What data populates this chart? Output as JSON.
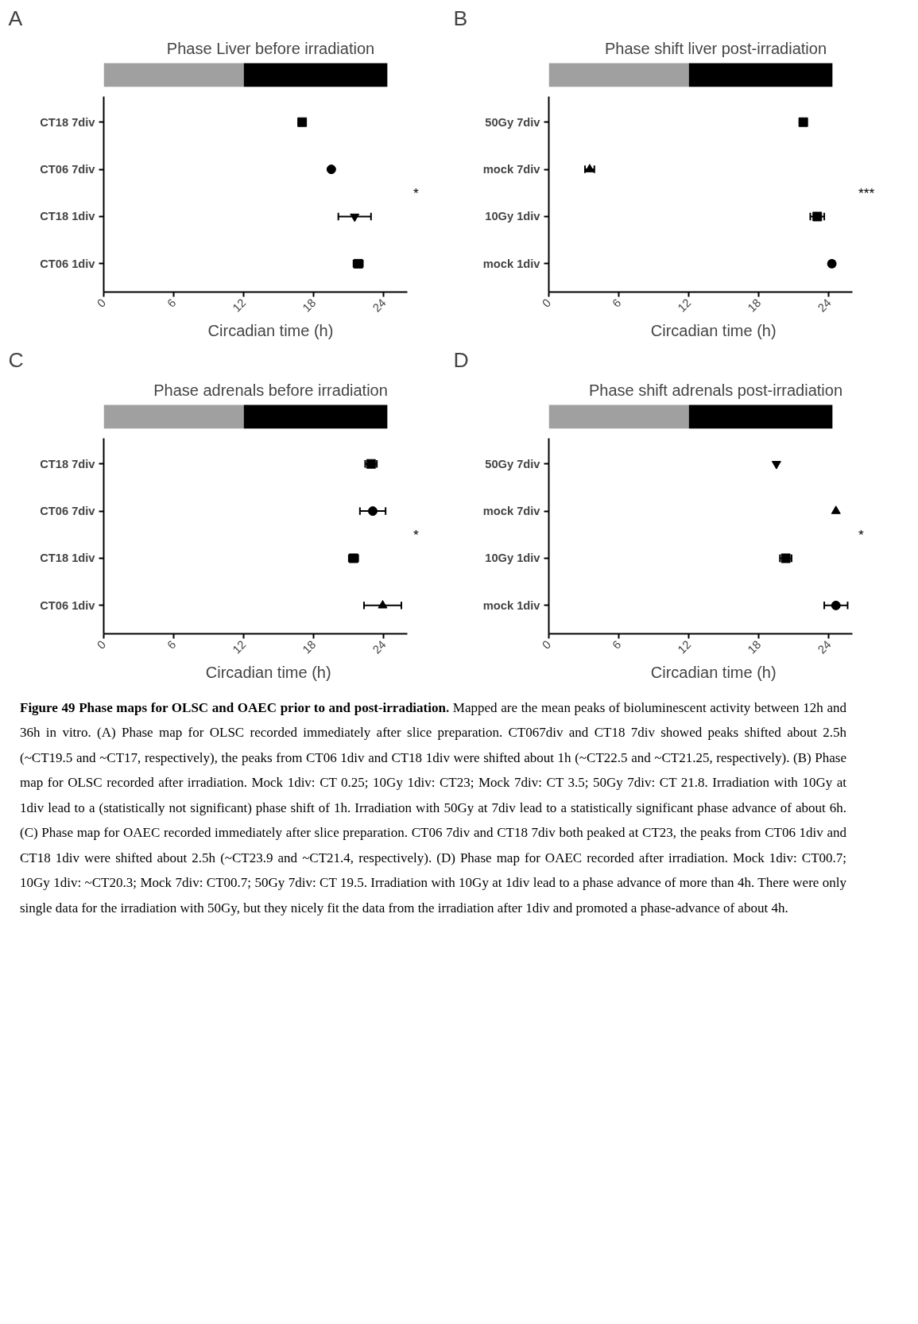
{
  "chart_data": [
    {
      "type": "scatter",
      "orientation": "horizontal",
      "stacked": true,
      "title": "Phase Liver before irradiation",
      "xlabel": "Circadian time (h)",
      "categories": [
        null,
        "CT18 7div",
        "CT06 7div",
        "CT18 1div",
        "CT06 1div"
      ],
      "xlim": [
        0,
        26
      ],
      "xticks": [
        0,
        6,
        12,
        18,
        24
      ],
      "grid": false,
      "annotations": [
        "A",
        "*"
      ],
      "series": [
        {
          "type": "bar",
          "color": "#a0a0a0",
          "values": [
            12,
            null,
            null,
            null,
            null
          ]
        },
        {
          "type": "bar",
          "color": "#000000",
          "values": [
            12.3,
            null,
            null,
            null,
            null
          ]
        },
        {
          "color": "#000000",
          "marker": "square",
          "values": [
            null,
            17.0,
            null,
            null,
            null
          ],
          "errors": [
            null,
            0.2,
            null,
            null,
            null
          ]
        },
        {
          "color": "#000000",
          "marker": "circle",
          "values": [
            null,
            null,
            19.5,
            null,
            null
          ]
        },
        {
          "color": "#000000",
          "marker": "triangle_down",
          "values": [
            null,
            null,
            null,
            21.5,
            null
          ],
          "errors": [
            null,
            null,
            null,
            1.4,
            null
          ]
        },
        {
          "color": "#000000",
          "marker": "square",
          "values": [
            null,
            null,
            null,
            null,
            21.8
          ],
          "errors": [
            null,
            null,
            null,
            null,
            0.4
          ]
        }
      ]
    },
    {
      "type": "scatter",
      "orientation": "horizontal",
      "stacked": true,
      "title": "Phase shift liver post-irradiation",
      "xlabel": "Circadian time  (h)",
      "categories": [
        null,
        "50Gy 7div",
        "mock 7div",
        "10Gy 1div",
        "mock 1div"
      ],
      "xlim": [
        0,
        26
      ],
      "xticks": [
        0,
        6,
        12,
        18,
        24
      ],
      "grid": false,
      "annotations": [
        "B",
        "***"
      ],
      "series": [
        {
          "type": "bar",
          "color": "#a0a0a0",
          "values": [
            12,
            null,
            null,
            null,
            null
          ]
        },
        {
          "type": "bar",
          "color": "#000000",
          "values": [
            12.3,
            null,
            null,
            null,
            null
          ]
        },
        {
          "color": "#000000",
          "marker": "square",
          "values": [
            null,
            21.8,
            null,
            null,
            null
          ],
          "errors": [
            null,
            0.3,
            null,
            null,
            null
          ]
        },
        {
          "color": "#000000",
          "marker": "triangle",
          "values": [
            null,
            null,
            3.5,
            null,
            null
          ],
          "errors": [
            null,
            null,
            0.4,
            null,
            null
          ]
        },
        {
          "color": "#000000",
          "marker": "square",
          "values": [
            null,
            null,
            null,
            23.0,
            null
          ],
          "errors": [
            null,
            null,
            null,
            0.6,
            null
          ]
        },
        {
          "color": "#000000",
          "marker": "circle",
          "values": [
            null,
            null,
            null,
            null,
            24.25
          ],
          "errors": [
            null,
            null,
            null,
            null,
            0.2
          ]
        }
      ]
    },
    {
      "type": "scatter",
      "orientation": "horizontal",
      "stacked": true,
      "title": "Phase adrenals before irradiation",
      "xlabel": "Circadian time  (h)",
      "categories": [
        null,
        "CT18 7div",
        "CT06 7div",
        "CT18 1div",
        "CT06 1div"
      ],
      "xlim": [
        0,
        26
      ],
      "xticks": [
        0,
        6,
        12,
        18,
        24
      ],
      "grid": false,
      "annotations": [
        "C",
        "*"
      ],
      "series": [
        {
          "type": "bar",
          "color": "#a0a0a0",
          "values": [
            12,
            null,
            null,
            null,
            null
          ]
        },
        {
          "type": "bar",
          "color": "#000000",
          "values": [
            12.3,
            null,
            null,
            null,
            null
          ]
        },
        {
          "color": "#000000",
          "marker": "square",
          "values": [
            null,
            22.9,
            null,
            null,
            null
          ],
          "errors": [
            null,
            0.5,
            null,
            null,
            null
          ]
        },
        {
          "color": "#000000",
          "marker": "circle",
          "values": [
            null,
            null,
            23.05,
            null,
            null
          ],
          "errors": [
            null,
            null,
            1.1,
            null,
            null
          ]
        },
        {
          "color": "#000000",
          "marker": "square",
          "values": [
            null,
            null,
            null,
            21.4,
            null
          ],
          "errors": [
            null,
            null,
            null,
            0.4,
            null
          ]
        },
        {
          "color": "#000000",
          "marker": "triangle",
          "values": [
            null,
            null,
            null,
            null,
            23.9
          ],
          "errors": [
            null,
            null,
            null,
            null,
            1.6
          ]
        }
      ]
    },
    {
      "type": "scatter",
      "orientation": "horizontal",
      "stacked": true,
      "title": "Phase shift adrenals post-irradiation",
      "xlabel": "Circadian time  (h)",
      "categories": [
        null,
        "50Gy 7div",
        "mock 7div",
        "10Gy 1div",
        "mock 1div"
      ],
      "xlim": [
        0,
        26
      ],
      "xticks": [
        0,
        6,
        12,
        18,
        24
      ],
      "grid": false,
      "annotations": [
        "D",
        "*"
      ],
      "series": [
        {
          "type": "bar",
          "color": "#a0a0a0",
          "values": [
            12,
            null,
            null,
            null,
            null
          ]
        },
        {
          "type": "bar",
          "color": "#000000",
          "values": [
            12.3,
            null,
            null,
            null,
            null
          ]
        },
        {
          "color": "#000000",
          "marker": "triangle_down",
          "values": [
            null,
            19.5,
            null,
            null,
            null
          ]
        },
        {
          "color": "#000000",
          "marker": "triangle",
          "values": [
            null,
            null,
            24.6,
            null,
            null
          ]
        },
        {
          "color": "#000000",
          "marker": "square",
          "values": [
            null,
            null,
            null,
            20.3,
            null
          ],
          "errors": [
            null,
            null,
            null,
            0.5,
            null
          ]
        },
        {
          "color": "#000000",
          "marker": "circle",
          "values": [
            null,
            null,
            null,
            null,
            24.6
          ],
          "errors": [
            null,
            null,
            null,
            null,
            1.0
          ]
        }
      ]
    },
    {
      "type": "other",
      "annotations": [
        "Figure 49 Phase maps for OLSC and OAEC prior to and post-irradiation.",
        "Mapped are the mean peaks of bioluminescent activity between 12h and 36h in vitro. (A) Phase map for OLSC recorded immediately after slice preparation. CT067div and CT18 7div showed peaks shifted about 2.5h (~CT19.5 and ~CT17, respectively), the peaks from CT06 1div and CT18 1div were shifted about 1h (~CT22.5 and ~CT21.25, respectively). (B) Phase map for OLSC recorded after irradiation. Mock 1div: CT 0.25; 10Gy 1div: CT23; Mock 7div: CT 3.5; 50Gy 7div: CT 21.8. Irradiation with 10Gy at 1div lead to a (statistically not significant) phase shift of 1h. Irradiation with 50Gy at 7div lead to a statistically significant phase advance of about 6h. (C) Phase map for OAEC recorded immediately after slice preparation. CT06 7div and CT18 7div both peaked at CT23, the peaks from CT06 1div and CT18 1div were shifted about 2.5h (~CT23.9 and ~CT21.4, respectively). (D) Phase map for OAEC recorded after irradiation. Mock 1div: CT00.7; 10Gy 1div: ~CT20.3; Mock 7div: CT00.7; 50Gy 7div: CT 19.5. Irradiation with 10Gy at 1div lead to a phase advance of more than 4h. There were only single data for the irradiation with 50Gy, but they nicely fit the data from the irradiation after 1div and promoted a phase-advance of about 4h."
      ]
    }
  ]
}
